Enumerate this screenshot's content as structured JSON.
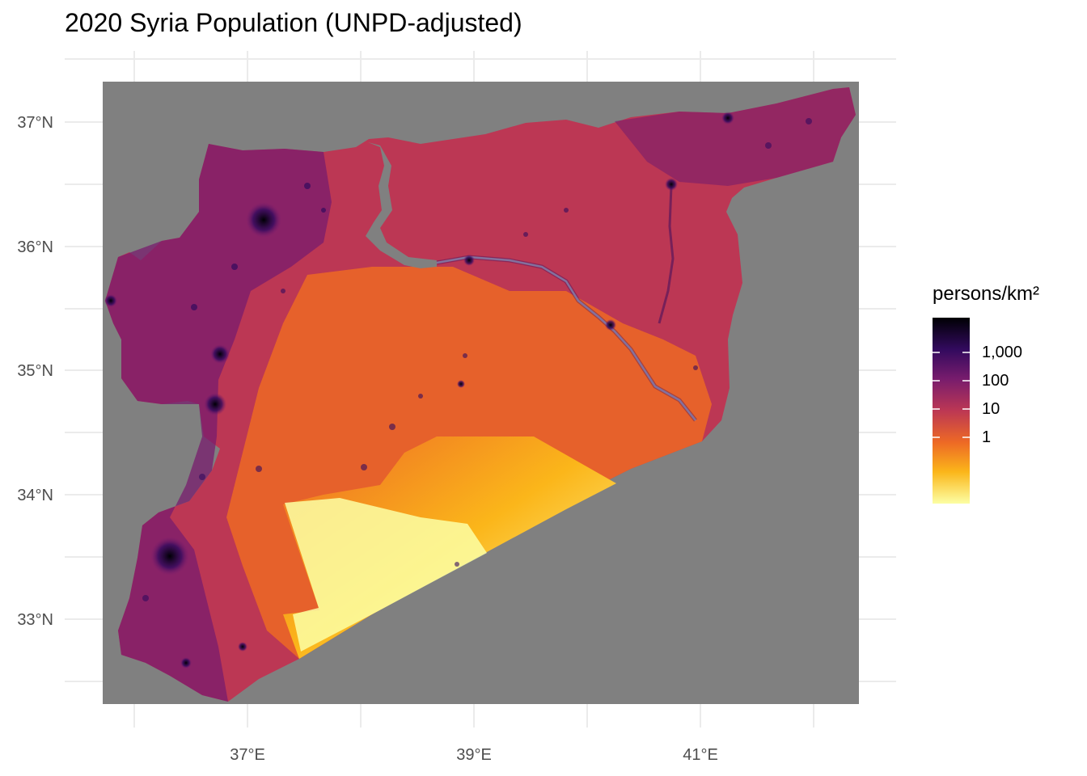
{
  "title": "2020 Syria Population (UNPD-adjusted)",
  "axes": {
    "x_ticks": [
      "37°E",
      "39°E",
      "41°E"
    ],
    "y_ticks": [
      "37°N",
      "36°N",
      "35°N",
      "34°N",
      "33°N"
    ]
  },
  "legend": {
    "title": "persons/km²",
    "labels": [
      "1,000",
      "100",
      "10",
      "1"
    ],
    "palette": [
      "#000004",
      "#320a5e",
      "#781c6d",
      "#bc3754",
      "#ed6925",
      "#fbb61a",
      "#fcffa4"
    ]
  },
  "colors": {
    "background_fill": "#808080",
    "grid": "#ebebeb"
  }
}
